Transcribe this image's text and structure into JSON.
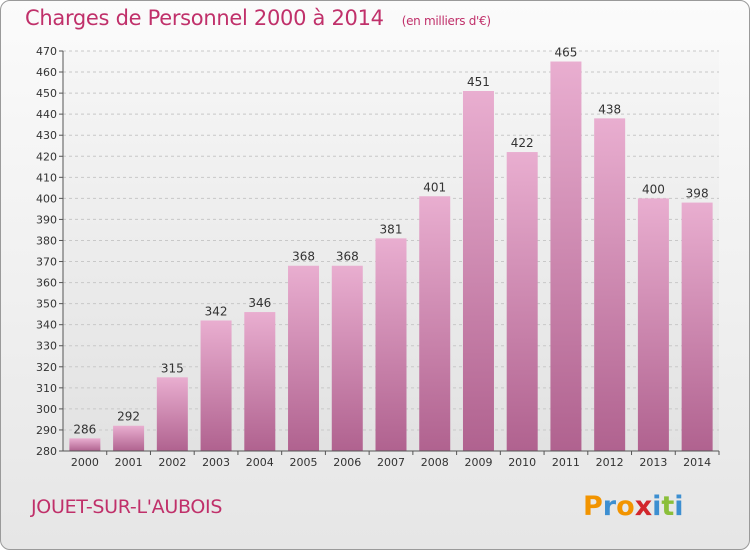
{
  "title": "Charges de Personnel 2000 à 2014",
  "subtitle": "(en milliers d'€)",
  "commune": "JOUET-SUR-L'AUBOIS",
  "logo": {
    "text": "Proxiti",
    "letters": [
      "P",
      "r",
      "o",
      "x",
      "i",
      "t",
      "i"
    ],
    "colors": [
      "#f29400",
      "#3d8fd1",
      "#f29400",
      "#d2262c",
      "#3d8fd1",
      "#8bbf3a",
      "#3d8fd1"
    ]
  },
  "colors": {
    "title": "#c0306a",
    "bar_top": "#e8a8cc",
    "bar_bottom": "#b06090"
  },
  "chart_data": {
    "type": "bar",
    "categories": [
      "2000",
      "2001",
      "2002",
      "2003",
      "2004",
      "2005",
      "2006",
      "2007",
      "2008",
      "2009",
      "2010",
      "2011",
      "2012",
      "2013",
      "2014"
    ],
    "values": [
      286,
      292,
      315,
      342,
      346,
      368,
      368,
      381,
      401,
      451,
      422,
      465,
      438,
      400,
      398
    ],
    "yticks": [
      280,
      290,
      300,
      310,
      320,
      330,
      340,
      350,
      360,
      370,
      380,
      390,
      400,
      410,
      420,
      430,
      440,
      450,
      460,
      470
    ],
    "ylim": [
      280,
      470
    ],
    "grid": true,
    "title": "Charges de Personnel 2000 à 2014",
    "xlabel": "",
    "ylabel": ""
  }
}
